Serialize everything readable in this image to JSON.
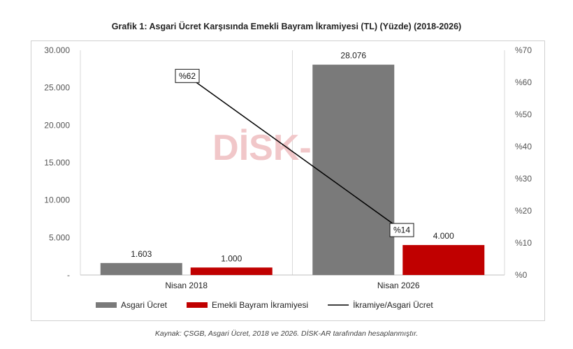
{
  "chart_data": {
    "type": "bar",
    "title": "Grafik 1: Asgari Ücret Karşısında Emekli Bayram İkramiyesi (TL) (Yüzde) (2018-2026)",
    "categories": [
      "Nisan 2018",
      "Nisan 2026"
    ],
    "series": [
      {
        "name": "Asgari Ücret",
        "values": [
          1603,
          28076
        ],
        "labels": [
          "1.603",
          "28.076"
        ],
        "color": "#7a7a7a",
        "axis": "left"
      },
      {
        "name": "Emekli Bayram İkramiyesi",
        "values": [
          1000,
          4000
        ],
        "labels": [
          "1.000",
          "4.000"
        ],
        "color": "#c00000",
        "axis": "left"
      },
      {
        "name": "İkramiye/Asgari Ücret",
        "type": "line",
        "values": [
          62,
          14
        ],
        "labels": [
          "%62",
          "%14"
        ],
        "color": "#000000",
        "axis": "right"
      }
    ],
    "left_axis": {
      "min": 0,
      "max": 30000,
      "ticks": [
        {
          "v": 0,
          "label": "-"
        },
        {
          "v": 5000,
          "label": "5.000"
        },
        {
          "v": 10000,
          "label": "10.000"
        },
        {
          "v": 15000,
          "label": "15.000"
        },
        {
          "v": 20000,
          "label": "20.000"
        },
        {
          "v": 25000,
          "label": "25.000"
        },
        {
          "v": 30000,
          "label": "30.000"
        }
      ]
    },
    "right_axis": {
      "min": 0,
      "max": 70,
      "ticks": [
        {
          "v": 0,
          "label": "%0"
        },
        {
          "v": 10,
          "label": "%10"
        },
        {
          "v": 20,
          "label": "%20"
        },
        {
          "v": 30,
          "label": "%30"
        },
        {
          "v": 40,
          "label": "%40"
        },
        {
          "v": 50,
          "label": "%50"
        },
        {
          "v": 60,
          "label": "%60"
        },
        {
          "v": 70,
          "label": "%70"
        }
      ]
    },
    "grid": "vertical",
    "legend": "bottom",
    "watermark": "DİSK-AR"
  },
  "source_note": "Kaynak: ÇSGB, Asgari Ücret, 2018 ve 2026. DİSK-AR tarafından hesaplanmıştır."
}
